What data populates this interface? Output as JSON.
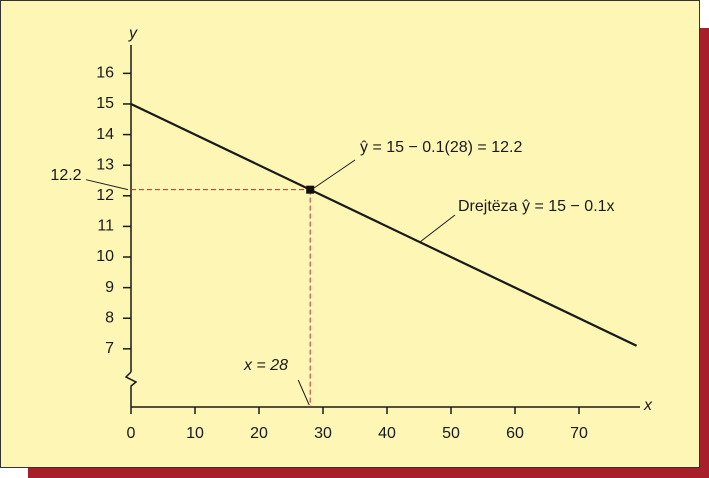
{
  "chart_data": {
    "type": "line",
    "x": [
      0,
      79
    ],
    "values": [
      15,
      7.1
    ],
    "color": "#1a1a1a",
    "xlim": [
      0,
      80
    ],
    "ylim": [
      5.1,
      17
    ],
    "xticks": [
      0,
      10,
      20,
      30,
      40,
      50,
      60,
      70
    ],
    "yticks": [
      7,
      8,
      9,
      10,
      11,
      12,
      13,
      14,
      15,
      16
    ],
    "x_label": "x",
    "y_label": "y",
    "highlight": {
      "x": 28,
      "y": 12.2,
      "x_text": "x = 28",
      "color": "#c0282d"
    },
    "annotations": [
      "ŷ = 15 − 0.1(28) = 12.2",
      "Drejtëza ŷ = 15 − 0.1x"
    ]
  }
}
